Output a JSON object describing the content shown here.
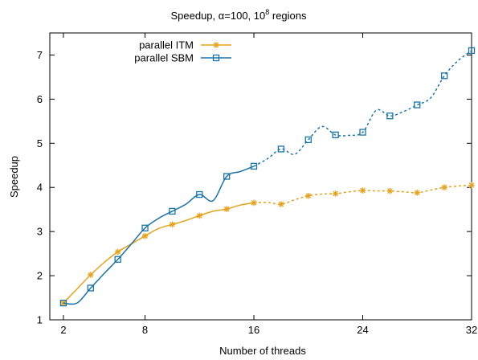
{
  "chart_data": {
    "type": "line",
    "title": "Speedup, α=100, 10⁸ regions",
    "title_main": "Speedup, α=100, 10",
    "title_sup": "8",
    "title_tail": " regions",
    "xlabel": "Number of threads",
    "ylabel": "Speedup",
    "xlim": [
      1,
      32
    ],
    "ylim": [
      1,
      7.5
    ],
    "xticks": [
      2,
      8,
      16,
      24,
      32
    ],
    "yticks": [
      1,
      2,
      3,
      4,
      5,
      6,
      7
    ],
    "grid": false,
    "legend_position": "top-left",
    "solid_until_x": 16,
    "series": [
      {
        "name": "parallel ITM",
        "color": "#e6a21a",
        "marker": "asterisk",
        "x": [
          2,
          3,
          4,
          5,
          6,
          7,
          8,
          9,
          10,
          11,
          12,
          13,
          14,
          15,
          16,
          17,
          18,
          19,
          20,
          21,
          22,
          23,
          24,
          25,
          26,
          27,
          28,
          29,
          30,
          31,
          32
        ],
        "values": [
          1.38,
          1.7,
          2.02,
          2.3,
          2.54,
          2.72,
          2.9,
          3.07,
          3.16,
          3.25,
          3.36,
          3.46,
          3.51,
          3.6,
          3.65,
          3.66,
          3.62,
          3.72,
          3.81,
          3.85,
          3.86,
          3.9,
          3.93,
          3.92,
          3.92,
          3.9,
          3.88,
          3.94,
          4.0,
          4.03,
          4.05
        ],
        "marked": [
          2,
          4,
          6,
          8,
          10,
          12,
          14,
          16,
          18,
          20,
          22,
          24,
          26,
          28,
          30,
          32
        ]
      },
      {
        "name": "parallel SBM",
        "color": "#1a74a8",
        "marker": "open-square",
        "x": [
          2,
          3,
          4,
          5,
          6,
          7,
          8,
          9,
          10,
          11,
          12,
          13,
          14,
          15,
          16,
          17,
          18,
          19,
          20,
          21,
          22,
          23,
          24,
          25,
          26,
          27,
          28,
          29,
          30,
          31,
          32
        ],
        "values": [
          1.38,
          1.38,
          1.72,
          2.05,
          2.37,
          2.72,
          3.08,
          3.3,
          3.46,
          3.62,
          3.84,
          3.7,
          4.25,
          4.36,
          4.48,
          4.65,
          4.87,
          4.75,
          5.08,
          5.38,
          5.19,
          5.18,
          5.25,
          5.75,
          5.62,
          5.72,
          5.87,
          6.03,
          6.53,
          6.87,
          7.1
        ],
        "marked": [
          2,
          4,
          6,
          8,
          10,
          12,
          14,
          16,
          18,
          20,
          22,
          24,
          26,
          28,
          30,
          32
        ]
      }
    ]
  }
}
